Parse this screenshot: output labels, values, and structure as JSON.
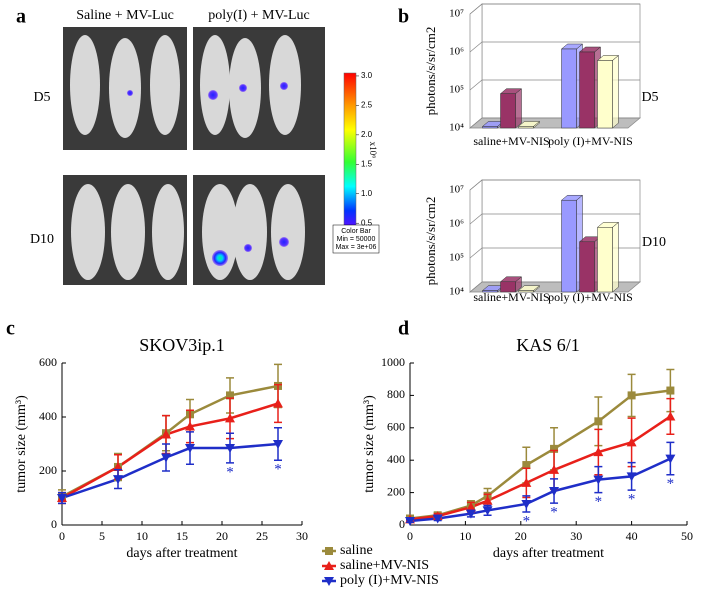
{
  "panel_labels": [
    "a",
    "b",
    "c",
    "d"
  ],
  "imaging": {
    "columns": [
      "Saline + MV-Luc",
      "poly(I) + MV-Luc"
    ],
    "rows": [
      "D5",
      "D10"
    ],
    "colorbar": {
      "lim": [
        0.3,
        3.05
      ],
      "ticks": [
        {
          "value": 3,
          "label": "3.0"
        },
        {
          "value": 2.5,
          "label": "2.5"
        },
        {
          "value": 2,
          "label": "2.0"
        },
        {
          "value": 1.5,
          "label": "1.5"
        },
        {
          "value": 1,
          "label": "1.0"
        },
        {
          "value": 0.5,
          "label": "0.5"
        }
      ],
      "unit": "x10⁶",
      "box": [
        "Color Bar",
        "Min = 50000",
        "Max = 3e+06"
      ]
    }
  },
  "chart_data": [
    {
      "type": "bar",
      "ylabel": "photons/s/sr/cm2",
      "annotation": "D5",
      "log": true,
      "grid": true,
      "categories": [
        "saline+MV-NIS",
        "poly (I)+MV-NIS"
      ],
      "series": [
        {
          "color": "#9999ff",
          "values": [
            11000,
            1200000
          ]
        },
        {
          "color": "#993366",
          "values": [
            80000,
            1000000
          ]
        },
        {
          "color": "#ffffcc",
          "values": [
            11000,
            600000
          ]
        }
      ],
      "ylim": [
        10000,
        10000000
      ],
      "yticks": [
        {
          "value": 10000,
          "label": "10⁴"
        },
        {
          "value": 100000,
          "label": "10⁵"
        },
        {
          "value": 1000000,
          "label": "10⁶"
        },
        {
          "value": 10000000,
          "label": "10⁷"
        }
      ]
    },
    {
      "type": "bar",
      "ylabel": "photons/s/sr/cm2",
      "annotation": "D10",
      "log": true,
      "grid": true,
      "categories": [
        "saline+MV-NIS",
        "poly (I)+MV-NIS"
      ],
      "series": [
        {
          "color": "#9999ff",
          "values": [
            11000,
            5000000
          ]
        },
        {
          "color": "#993366",
          "values": [
            20000,
            300000
          ]
        },
        {
          "color": "#ffffcc",
          "values": [
            11000,
            800000
          ]
        }
      ],
      "ylim": [
        10000,
        10000000
      ],
      "yticks": [
        {
          "value": 10000,
          "label": "10⁴"
        },
        {
          "value": 100000,
          "label": "10⁵"
        },
        {
          "value": 1000000,
          "label": "10⁶"
        },
        {
          "value": 10000000,
          "label": "10⁷"
        }
      ]
    },
    {
      "type": "line",
      "title": "SKOV3ip.1",
      "xlabel": "days after treatment",
      "ylabel": "tumor size (mm³)",
      "x": [
        0,
        7,
        13,
        16,
        21,
        27
      ],
      "series": [
        {
          "name": "saline",
          "color": "#9b8a3c",
          "marker": "square",
          "values": [
            105,
            215,
            340,
            410,
            480,
            515
          ],
          "errors": [
            25,
            50,
            65,
            55,
            65,
            80
          ]
        },
        {
          "name": "saline+MV-NIS",
          "color": "#e8201a",
          "marker": "triangle",
          "values": [
            100,
            215,
            335,
            365,
            395,
            450
          ],
          "errors": [
            20,
            45,
            70,
            60,
            75,
            70
          ]
        },
        {
          "name": "poly (I)+MV-NIS",
          "color": "#1f2ec8",
          "marker": "triangle-down",
          "values": [
            100,
            170,
            250,
            285,
            285,
            300
          ],
          "errors": [
            20,
            35,
            50,
            60,
            55,
            60
          ]
        }
      ],
      "xlim": [
        0,
        30
      ],
      "xticks": [
        0,
        5,
        10,
        15,
        20,
        25,
        30
      ],
      "ylim": [
        0,
        600
      ],
      "yticks": [
        0,
        200,
        400,
        600
      ],
      "significance": {
        "label": "*",
        "x": [
          21,
          27
        ]
      }
    },
    {
      "type": "line",
      "title": "KAS 6/1",
      "xlabel": "days after treatment",
      "ylabel": "tumor size (mm³)",
      "x": [
        0,
        5,
        11,
        14,
        21,
        26,
        34,
        40,
        47
      ],
      "series": [
        {
          "color": "#9b8a3c",
          "marker": "square",
          "values": [
            40,
            60,
            120,
            180,
            370,
            470,
            640,
            800,
            830
          ],
          "errors": [
            10,
            15,
            30,
            45,
            110,
            130,
            150,
            130,
            130
          ]
        },
        {
          "color": "#e8201a",
          "marker": "triangle",
          "values": [
            35,
            55,
            110,
            150,
            260,
            340,
            450,
            510,
            670
          ],
          "errors": [
            10,
            15,
            30,
            40,
            90,
            120,
            140,
            150,
            110
          ]
        },
        {
          "color": "#1f2ec8",
          "marker": "triangle-down",
          "values": [
            25,
            40,
            70,
            90,
            130,
            210,
            280,
            300,
            410
          ],
          "errors": [
            8,
            12,
            20,
            30,
            50,
            75,
            80,
            85,
            100
          ]
        }
      ],
      "xlim": [
        0,
        50
      ],
      "xticks": [
        0,
        10,
        20,
        30,
        40,
        50
      ],
      "ylim": [
        0,
        1000
      ],
      "yticks": [
        0,
        200,
        400,
        600,
        800,
        1000
      ],
      "significance": {
        "label": "*",
        "x": [
          21,
          26,
          34,
          40,
          47
        ]
      }
    }
  ]
}
